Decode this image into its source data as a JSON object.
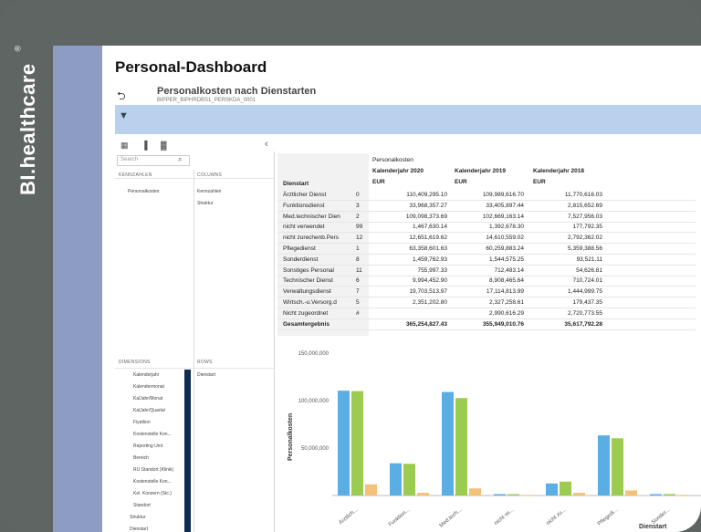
{
  "brand": {
    "name": "BI.healthcare",
    "reg": "®"
  },
  "dashboard": {
    "title": "Personal-Dashboard"
  },
  "report": {
    "title": "Personalkosten nach Dienstarten",
    "subtitle": "BIPPER_BIPHRDBS1_PERSKDA_0001"
  },
  "icons": {
    "back": "back-arrow-icon",
    "filter": "filter-icon",
    "search": "search-icon",
    "collapse": "chevron-left-icon"
  },
  "left_panel": {
    "search_placeholder": "Search",
    "kennzahlen_header": "KENNZAHLEN",
    "columns_header": "COLUMNS",
    "kennzahlen_items": [
      "Personalkosten"
    ],
    "columns_items": [
      "Kennzahlen",
      "Struktur"
    ],
    "dimensions_header": "DIMENSIONS",
    "rows_header": "ROWS",
    "dimensions_items": [
      "Kalenderjahr",
      "Kalendermonat",
      "KalJahr/Monat",
      "KalJahr/Quartal",
      "Fiyaltion",
      "Kostenstelle Kon...",
      "Reporting Unit",
      "Bereich",
      "RU Standort (Klinik)",
      "Kostenstelle Kon...",
      "Kel. Konzern (Stc.)",
      "Standort",
      "Struktur",
      "Dienstart"
    ],
    "rows_items": [
      "Dienstart"
    ]
  },
  "table": {
    "header_group": "Personalkosten",
    "row_header": "Dienstart",
    "columns": [
      {
        "label": "Kalenderjahr 2020",
        "unit": "EUR"
      },
      {
        "label": "Kalenderjahr 2019",
        "unit": "EUR"
      },
      {
        "label": "Kalenderjahr 2018",
        "unit": "EUR"
      }
    ],
    "rows": [
      {
        "name": "Ärztlicher Dienst",
        "code": "0",
        "v": [
          "110,409,295.10",
          "109,989,616.70",
          "11,770,616.03"
        ]
      },
      {
        "name": "Funktionsdienst",
        "code": "3",
        "v": [
          "33,968,357.27",
          "33,405,897.44",
          "2,815,652.69"
        ]
      },
      {
        "name": "Med.technischer Dien",
        "code": "2",
        "v": [
          "109,098,373.69",
          "102,669,163.14",
          "7,527,956.03"
        ]
      },
      {
        "name": "nicht verwendet",
        "code": "99",
        "v": [
          "1,467,630.14",
          "1,392,678.30",
          "177,792.35"
        ]
      },
      {
        "name": "nicht zurechenb.Pers",
        "code": "12",
        "v": [
          "12,651,619.62",
          "14,610,559.02",
          "2,792,362.02"
        ]
      },
      {
        "name": "Pflegedienst",
        "code": "1",
        "v": [
          "63,358,601.63",
          "60,259,883.24",
          "5,359,388.56"
        ]
      },
      {
        "name": "Sonderdienst",
        "code": "8",
        "v": [
          "1,459,762.93",
          "1,544,575.25",
          "93,521.11"
        ]
      },
      {
        "name": "Sonstiges Personal",
        "code": "11",
        "v": [
          "755,997.33",
          "712,483.14",
          "54,626.81"
        ]
      },
      {
        "name": "Technischer Dienst",
        "code": "6",
        "v": [
          "9,994,452.90",
          "8,908,465.64",
          "710,724.01"
        ]
      },
      {
        "name": "Verwaltungsdienst",
        "code": "7",
        "v": [
          "19,703,513.97",
          "17,114,813.99",
          "1,444,999.75"
        ]
      },
      {
        "name": "Wirtsch.-u.Versorg.d",
        "code": "5",
        "v": [
          "2,351,202.80",
          "2,327,258.61",
          "179,437.35"
        ]
      },
      {
        "name": "Nicht zugeordnet",
        "code": "#",
        "v": [
          "",
          "2,990,616.29",
          "2,720,773.55"
        ]
      }
    ],
    "total": {
      "name": "Gesamtergebnis",
      "v": [
        "365,254,827.43",
        "355,949,010.76",
        "35,617,792.28"
      ]
    }
  },
  "chart_data": {
    "type": "bar",
    "ylabel": "Personalkosten",
    "xlabel": "Dienstart",
    "ylim": [
      0,
      150000000
    ],
    "yticks": [
      "150,000,000",
      "100,000,000",
      "50,000,000"
    ],
    "yticks_values": [
      150000000,
      100000000,
      50000000
    ],
    "categories": [
      "Ärztlich...",
      "Funktion...",
      "Med.tech...",
      "nicht ve...",
      "nicht zu...",
      "Pflegedi...",
      "Sonder..."
    ],
    "series": [
      {
        "color": "#5aaee3",
        "values": [
          110409295,
          33968357,
          109098374,
          1467630,
          12651620,
          63358602,
          1459763
        ]
      },
      {
        "color": "#9ccc4f",
        "values": [
          109989617,
          33405897,
          102669163,
          1392678,
          14610559,
          60259883,
          1544575
        ]
      },
      {
        "color": "#f3c17a",
        "values": [
          11770616,
          2815653,
          7527956,
          177792,
          2792362,
          5359389,
          93521
        ]
      }
    ]
  }
}
